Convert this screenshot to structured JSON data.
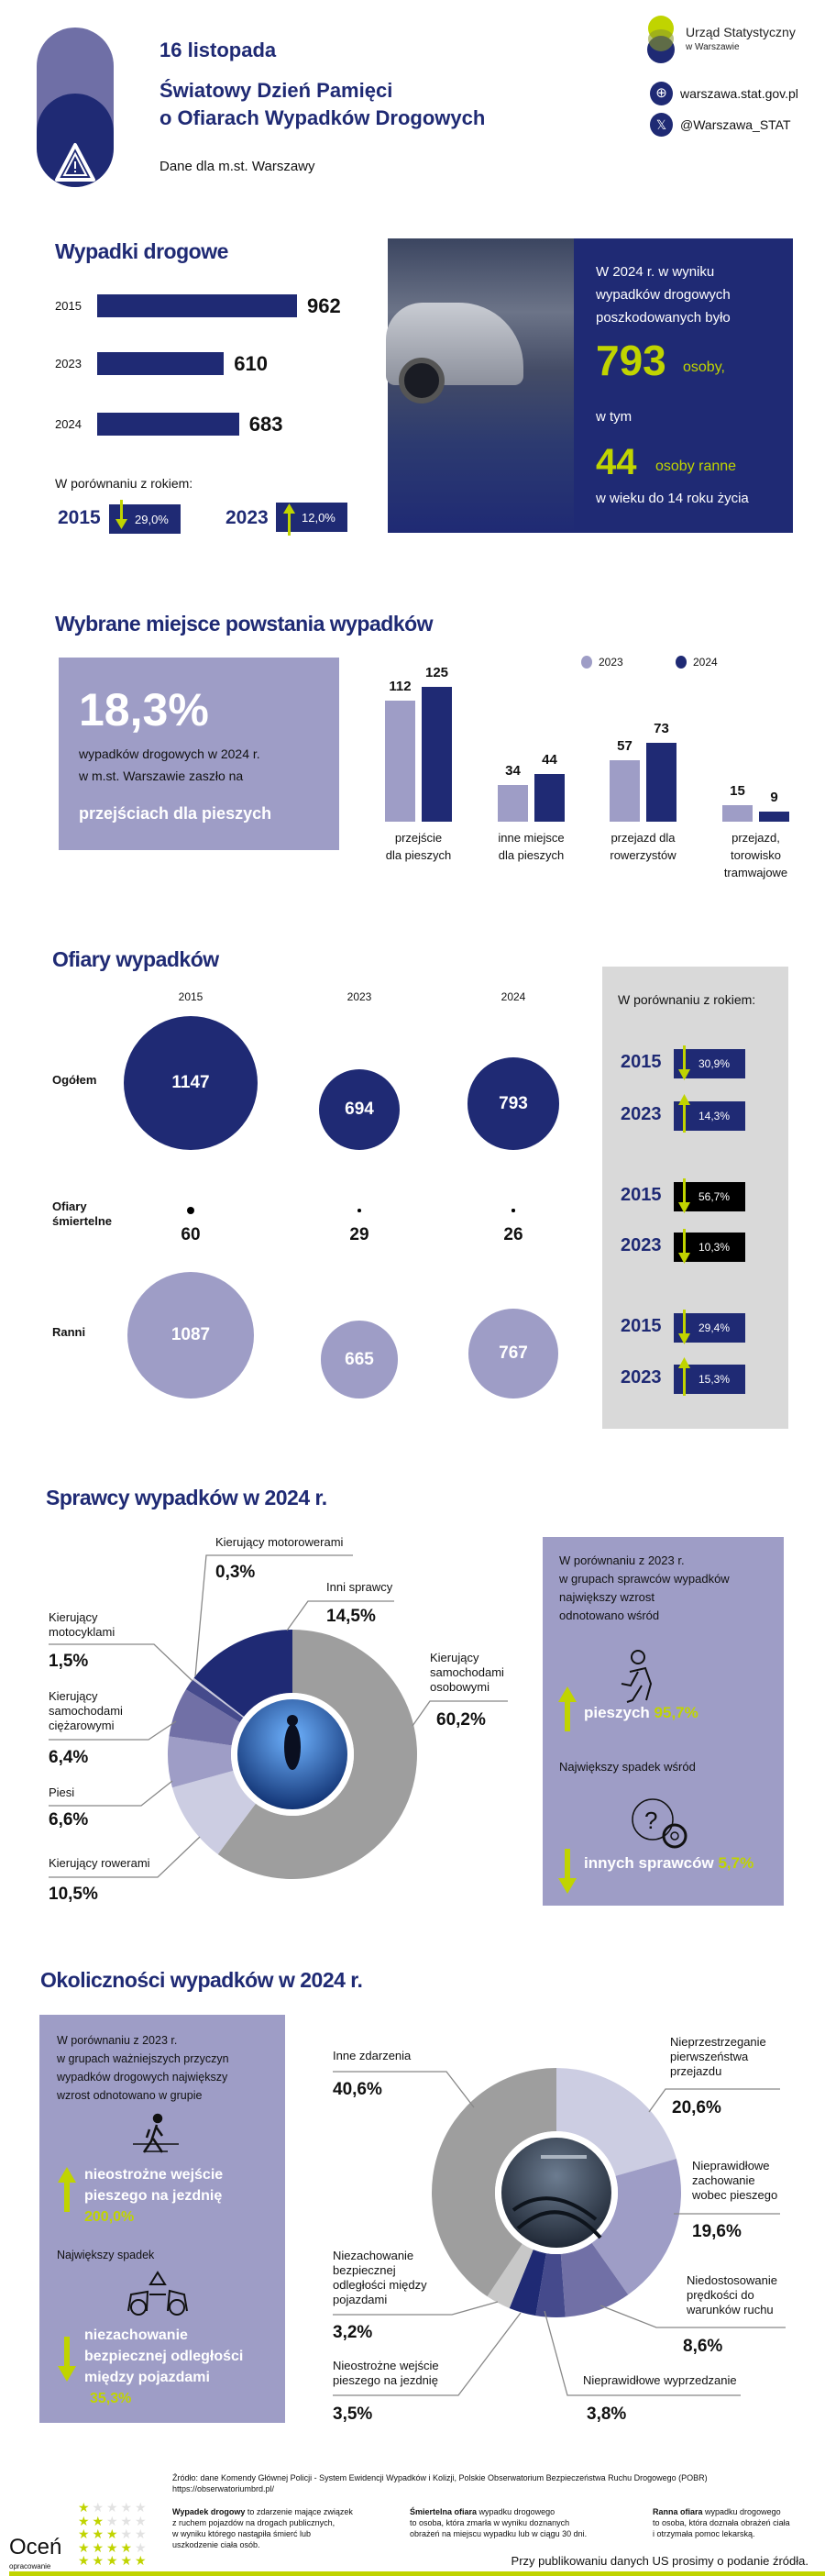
{
  "colors": {
    "navy": "#1f2a74",
    "lavender": "#9e9dc6",
    "lime": "#c0d400",
    "grey_panel": "#d9d9d9",
    "black": "#000000"
  },
  "header": {
    "date": "16 listopada",
    "title_line1": "Światowy Dzień Pamięci",
    "title_line2": "o Ofiarach Wypadków Drogowych",
    "subtitle": "Dane dla m.st. Warszawy",
    "org_line1": "Urząd Statystyczny",
    "org_line2": "w Warszawie",
    "website": "warszawa.stat.gov.pl",
    "twitter": "@Warszawa_STAT",
    "icons": [
      "warning-triangle-icon",
      "globe-icon",
      "x-logo-icon"
    ]
  },
  "accidents": {
    "title": "Wypadki drogowe",
    "compare_label": "W porównaniu z rokiem:",
    "compare": [
      {
        "year": "2015",
        "change": "29,0%",
        "direction": "down"
      },
      {
        "year": "2023",
        "change": "12,0%",
        "direction": "up"
      }
    ],
    "panel": {
      "line1": "W 2024 r. w wyniku",
      "line2": "wypadków drogowych",
      "line3": "poszkodowanych było",
      "big1": "793",
      "big1_unit": "osoby,",
      "mid": "w tym",
      "big2": "44",
      "big2_unit": "osoby ranne",
      "line_last": "w wieku do 14 roku życia"
    }
  },
  "places": {
    "title": "Wybrane miejsce powstania wypadków",
    "highlight_value": "18,3%",
    "highlight_text1": "wypadków drogowych w 2024 r.",
    "highlight_text2": "w m.st. Warszawie zaszło na",
    "highlight_emph": "przejściach dla pieszych"
  },
  "victims": {
    "title": "Ofiary wypadków",
    "row_labels": [
      "Ogółem",
      "Ofiary śmiertelne",
      "Ranni"
    ],
    "compare_label": "W porównaniu z rokiem:",
    "compare": [
      {
        "year": "2015",
        "change": "30,9%",
        "direction": "down",
        "group": "Ogółem"
      },
      {
        "year": "2023",
        "change": "14,3%",
        "direction": "up",
        "group": "Ogółem"
      },
      {
        "year": "2015",
        "change": "56,7%",
        "direction": "down",
        "group": "Ofiary śmiertelne"
      },
      {
        "year": "2023",
        "change": "10,3%",
        "direction": "down",
        "group": "Ofiary śmiertelne"
      },
      {
        "year": "2015",
        "change": "29,4%",
        "direction": "down",
        "group": "Ranni"
      },
      {
        "year": "2023",
        "change": "15,3%",
        "direction": "up",
        "group": "Ranni"
      }
    ]
  },
  "perpetrators": {
    "title": "Sprawcy wypadków w 2024 r.",
    "box_text": [
      "W porównaniu z 2023 r.",
      "w grupach sprawców wypadków",
      "największy wzrost",
      "odnotowano wśród"
    ],
    "up_label": "pieszych",
    "up_value": "95,7%",
    "down_intro": "Największy spadek wśród",
    "down_label": "innych sprawców",
    "down_value": "5,7%"
  },
  "circumstances": {
    "title": "Okoliczności wypadków w 2024 r.",
    "box_text": [
      "W porównaniu z 2023 r.",
      "w grupach ważniejszych przyczyn",
      "wypadków drogowych największy",
      "wzrost odnotowano w grupie"
    ],
    "up_label": [
      "nieostrożne wejście",
      "pieszego na jezdnię"
    ],
    "up_value": "200,0%",
    "down_intro": "Największy spadek",
    "down_label": [
      "niezachowanie",
      "bezpiecznej odległości",
      "między pojazdami"
    ],
    "down_value": "35,3%"
  },
  "footer": {
    "source": "Źródło: dane Komendy Głównej Policji - System Ewidencji Wypadków i Kolizji, Polskie Obserwatorium Bezpieczeństwa Ruchu Drogowego (POBR)",
    "source_url": "https://obserwatoriumbrd.pl/",
    "def1_term": "Wypadek drogowy",
    "def1_text": [
      "to zdarzenie mające związek",
      "z ruchem pojazdów na drogach publicznych,",
      "w wyniku którego nastąpiła śmierć lub",
      "uszkodzenie ciała osób."
    ],
    "def2_term": "Śmiertelna ofiara",
    "def2_text": [
      "wypadku drogowego",
      "to osoba, która zmarła w wyniku doznanych",
      "obrażeń na miejscu wypadku lub w ciągu 30 dni."
    ],
    "def3_term": "Ranna ofiara",
    "def3_text": [
      "wypadku drogowego",
      "to osoba, która doznała obrażeń ciała",
      "i otrzymała pomoc lekarską."
    ],
    "rate_big": "Oceń",
    "rate_small": "opracowanie",
    "notice": "Przy publikowaniu danych US prosimy o podanie źródła."
  },
  "chart_data": [
    {
      "type": "bar",
      "orientation": "horizontal",
      "title": "Wypadki drogowe",
      "categories": [
        "2015",
        "2023",
        "2024"
      ],
      "values": [
        962,
        610,
        683
      ],
      "color": "#1f2a74"
    },
    {
      "type": "bar",
      "title": "Wybrane miejsce powstania wypadków",
      "categories": [
        [
          "przejście",
          "dla pieszych"
        ],
        [
          "inne miejsce",
          "dla pieszych"
        ],
        [
          "przejazd dla",
          "rowerzystów"
        ],
        [
          "przejazd,",
          "torowisko",
          "tramwajowe"
        ]
      ],
      "series": [
        {
          "name": "2023",
          "values": [
            112,
            34,
            57,
            15
          ],
          "color": "#9e9dc6"
        },
        {
          "name": "2024",
          "values": [
            125,
            44,
            73,
            9
          ],
          "color": "#1f2a74"
        }
      ],
      "legend": "top-right"
    },
    {
      "type": "table",
      "title": "Ofiary wypadków",
      "columns": [
        "2015",
        "2023",
        "2024"
      ],
      "rows": [
        {
          "name": "Ogółem",
          "values": [
            1147,
            694,
            793
          ],
          "color": "#1f2a74"
        },
        {
          "name": "Ofiary śmiertelne",
          "values": [
            60,
            29,
            26
          ],
          "color": "#000000"
        },
        {
          "name": "Ranni",
          "values": [
            1087,
            665,
            767
          ],
          "color": "#9e9dc6"
        }
      ]
    },
    {
      "type": "pie",
      "variant": "donut",
      "title": "Sprawcy wypadków w 2024 r.",
      "slices": [
        {
          "label": "Kierujący samochodami osobowymi",
          "value": 60.2,
          "text": "60,2%",
          "color": "#9e9e9e"
        },
        {
          "label": "Kierujący rowerami",
          "value": 10.5,
          "text": "10,5%",
          "color": "#cccde2"
        },
        {
          "label": "Piesi",
          "value": 6.6,
          "text": "6,6%",
          "color": "#9e9dc6"
        },
        {
          "label": "Kierujący samochodami ciężarowymi",
          "value": 6.4,
          "text": "6,4%",
          "color": "#7170a6"
        },
        {
          "label": "Kierujący motocyklami",
          "value": 1.5,
          "text": "1,5%",
          "color": "#454a8c"
        },
        {
          "label": "Kierujący motorowerami",
          "value": 0.3,
          "text": "0,3%",
          "color": "#c8c8dc"
        },
        {
          "label": "Inni sprawcy",
          "value": 14.5,
          "text": "14,5%",
          "color": "#1f2a74"
        }
      ]
    },
    {
      "type": "pie",
      "variant": "donut",
      "title": "Okoliczności wypadków w 2024 r.",
      "slices": [
        {
          "label": "Nieprzestrzeganie pierwszeństwa przejazdu",
          "value": 20.6,
          "text": "20,6%",
          "color": "#cccde2"
        },
        {
          "label": "Nieprawidłowe zachowanie wobec pieszego",
          "value": 19.6,
          "text": "19,6%",
          "color": "#9e9dc6"
        },
        {
          "label": "Niedostosowanie prędkości do warunków ruchu",
          "value": 8.6,
          "text": "8,6%",
          "color": "#7170a6"
        },
        {
          "label": "Nieprawidłowe wyprzedzanie",
          "value": 3.8,
          "text": "3,8%",
          "color": "#454a8c"
        },
        {
          "label": "Nieostrożne wejście pieszego na jezdnię",
          "value": 3.5,
          "text": "3,5%",
          "color": "#1f2a74"
        },
        {
          "label": "Niezachowanie bezpiecznej odległości między pojazdami",
          "value": 3.2,
          "text": "3,2%",
          "color": "#c8c8c8"
        },
        {
          "label": "Inne zdarzenia",
          "value": 40.6,
          "text": "40,6%",
          "color": "#9e9e9e"
        }
      ]
    }
  ]
}
